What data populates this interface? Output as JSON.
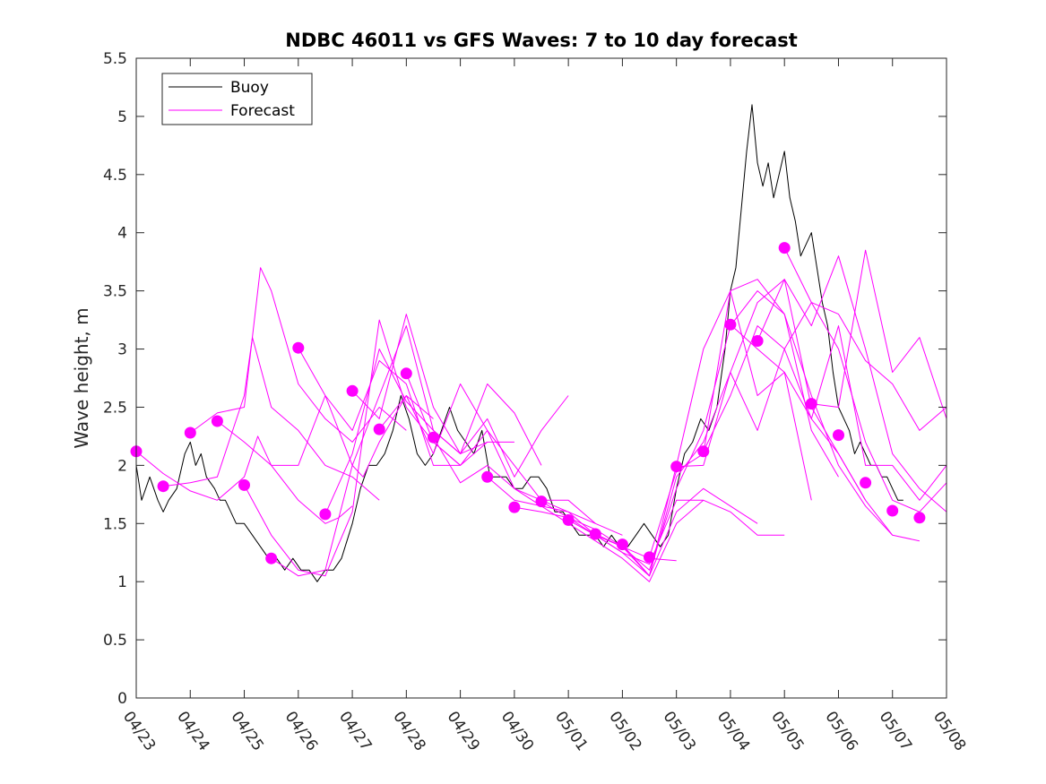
{
  "chart_data": {
    "type": "line",
    "title": "NDBC 46011 vs GFS Waves: 7 to 10 day forecast",
    "xlabel": "",
    "ylabel": "Wave height, m",
    "x_start": "04/23",
    "x_tick_labels": [
      "04/23",
      "04/24",
      "04/25",
      "04/26",
      "04/27",
      "04/28",
      "04/29",
      "04/30",
      "05/01",
      "05/02",
      "05/03",
      "05/04",
      "05/05",
      "05/06",
      "05/07",
      "05/08"
    ],
    "xlim": [
      "04/23",
      "05/08"
    ],
    "ylim": [
      0,
      5.5
    ],
    "y_ticks": [
      0,
      0.5,
      1,
      1.5,
      2,
      2.5,
      3,
      3.5,
      4,
      4.5,
      5,
      5.5
    ],
    "y_tick_labels": [
      "0",
      "0.5",
      "1",
      "1.5",
      "2",
      "2.5",
      "3",
      "3.5",
      "4",
      "4.5",
      "5",
      "5.5"
    ],
    "grid": false,
    "legend": {
      "position": "top-left",
      "entries": [
        "Buoy",
        "Forecast"
      ]
    },
    "colors": {
      "buoy": "#000000",
      "forecast": "#ff00ff",
      "axis": "#262626"
    },
    "series": [
      {
        "name": "Buoy",
        "style": "line",
        "x": [
          0.0,
          0.1,
          0.25,
          0.4,
          0.5,
          0.6,
          0.75,
          0.9,
          1.0,
          1.1,
          1.2,
          1.3,
          1.45,
          1.55,
          1.65,
          1.75,
          1.85,
          2.0,
          2.15,
          2.3,
          2.45,
          2.6,
          2.75,
          2.9,
          3.05,
          3.2,
          3.35,
          3.5,
          3.65,
          3.8,
          4.0,
          4.15,
          4.3,
          4.45,
          4.6,
          4.75,
          4.9,
          5.05,
          5.2,
          5.35,
          5.5,
          5.65,
          5.8,
          5.95,
          6.1,
          6.25,
          6.4,
          6.55,
          6.7,
          6.85,
          7.0,
          7.15,
          7.3,
          7.45,
          7.6,
          7.75,
          7.9,
          8.05,
          8.2,
          8.35,
          8.5,
          8.65,
          8.8,
          8.95,
          9.1,
          9.25,
          9.4,
          9.55,
          9.7,
          9.85,
          10.0,
          10.15,
          10.3,
          10.45,
          10.6,
          10.75,
          10.9,
          11.0,
          11.1,
          11.2,
          11.3,
          11.4,
          11.5,
          11.6,
          11.7,
          11.8,
          11.9,
          12.0,
          12.1,
          12.2,
          12.3,
          12.4,
          12.5,
          12.6,
          12.7,
          12.8,
          12.9,
          13.0,
          13.1,
          13.2,
          13.3,
          13.4,
          13.5,
          13.6,
          13.7,
          13.8,
          13.9,
          14.0,
          14.1,
          14.2
        ],
        "y": [
          2.0,
          1.7,
          1.9,
          1.7,
          1.6,
          1.7,
          1.8,
          2.1,
          2.2,
          2.0,
          2.1,
          1.9,
          1.8,
          1.7,
          1.7,
          1.6,
          1.5,
          1.5,
          1.4,
          1.3,
          1.2,
          1.2,
          1.1,
          1.2,
          1.1,
          1.1,
          1.0,
          1.1,
          1.1,
          1.2,
          1.5,
          1.8,
          2.0,
          2.0,
          2.1,
          2.3,
          2.6,
          2.4,
          2.1,
          2.0,
          2.1,
          2.3,
          2.5,
          2.3,
          2.2,
          2.1,
          2.3,
          1.9,
          1.9,
          1.9,
          1.8,
          1.8,
          1.9,
          1.9,
          1.8,
          1.6,
          1.6,
          1.5,
          1.4,
          1.4,
          1.4,
          1.3,
          1.4,
          1.3,
          1.3,
          1.4,
          1.5,
          1.4,
          1.3,
          1.4,
          1.8,
          2.1,
          2.2,
          2.4,
          2.3,
          2.5,
          3.0,
          3.5,
          3.7,
          4.2,
          4.7,
          5.1,
          4.6,
          4.4,
          4.6,
          4.3,
          4.5,
          4.7,
          4.3,
          4.1,
          3.8,
          3.9,
          4.0,
          3.7,
          3.4,
          3.2,
          2.8,
          2.5,
          2.4,
          2.3,
          2.1,
          2.2,
          2.1,
          2.0,
          2.0,
          1.9,
          1.9,
          1.8,
          1.7,
          1.7
        ]
      },
      {
        "name": "",
        "style": "line",
        "x": [
          0.0,
          0.5,
          1.0,
          1.5,
          2.0,
          2.25,
          2.5,
          3.0,
          3.5,
          3.75,
          4.0
        ],
        "y": [
          2.12,
          1.93,
          1.78,
          1.7,
          1.9,
          2.25,
          2.0,
          1.7,
          1.5,
          1.55,
          1.65
        ]
      },
      {
        "name": "",
        "style": "line",
        "x": [
          0.5,
          1.0,
          1.5,
          2.0,
          2.15,
          2.5,
          3.0,
          3.5,
          4.0,
          4.5
        ],
        "y": [
          1.82,
          1.85,
          1.9,
          2.6,
          3.1,
          2.5,
          2.3,
          2.0,
          1.9,
          1.7
        ]
      },
      {
        "name": "",
        "style": "line",
        "x": [
          1.0,
          1.5,
          2.0,
          2.3,
          2.5,
          3.0,
          3.5,
          4.0,
          4.5,
          5.0
        ],
        "y": [
          2.28,
          2.45,
          2.5,
          3.7,
          3.5,
          2.7,
          2.4,
          2.2,
          2.5,
          2.3
        ]
      },
      {
        "name": "",
        "style": "line",
        "x": [
          1.5,
          2.0,
          2.5,
          3.0,
          3.5,
          4.0,
          4.2,
          4.5,
          5.0,
          5.5
        ],
        "y": [
          2.38,
          2.2,
          2.0,
          2.0,
          2.6,
          2.0,
          1.9,
          2.2,
          2.6,
          2.4
        ]
      },
      {
        "name": "",
        "style": "line",
        "x": [
          2.0,
          2.5,
          3.0,
          3.5,
          4.0,
          4.5,
          5.0,
          5.5,
          6.0
        ],
        "y": [
          1.83,
          1.4,
          1.1,
          1.05,
          1.6,
          3.25,
          2.5,
          2.2,
          2.0
        ]
      },
      {
        "name": "",
        "style": "line",
        "x": [
          2.5,
          3.0,
          3.5,
          4.0,
          4.5,
          5.0,
          5.5,
          6.0,
          6.5
        ],
        "y": [
          1.2,
          1.05,
          1.1,
          2.0,
          2.6,
          3.2,
          2.3,
          2.1,
          2.2
        ]
      },
      {
        "name": "",
        "style": "line",
        "x": [
          3.0,
          3.5,
          4.0,
          4.5,
          5.0,
          5.5,
          6.0,
          6.5,
          7.0
        ],
        "y": [
          3.01,
          2.6,
          2.3,
          2.9,
          2.7,
          2.0,
          2.0,
          2.2,
          2.2
        ]
      },
      {
        "name": "",
        "style": "line",
        "x": [
          3.5,
          4.0,
          4.5,
          5.0,
          5.5,
          6.0,
          6.5,
          7.0,
          7.5
        ],
        "y": [
          1.58,
          2.1,
          3.0,
          2.55,
          2.3,
          2.1,
          2.7,
          2.45,
          2.0
        ]
      },
      {
        "name": "",
        "style": "line",
        "x": [
          4.0,
          4.5,
          5.0,
          5.5,
          6.0,
          6.5,
          7.0,
          7.5,
          8.0
        ],
        "y": [
          2.64,
          2.4,
          3.3,
          2.5,
          2.1,
          2.4,
          1.9,
          2.3,
          2.6
        ]
      },
      {
        "name": "",
        "style": "line",
        "x": [
          4.5,
          5.0,
          5.5,
          6.0,
          6.5,
          7.0,
          7.5,
          8.0,
          8.5
        ],
        "y": [
          2.31,
          2.6,
          2.1,
          2.7,
          2.3,
          1.8,
          1.7,
          1.7,
          1.5
        ]
      },
      {
        "name": "",
        "style": "line",
        "x": [
          5.0,
          5.5,
          6.0,
          6.5,
          7.0,
          7.5,
          8.0,
          8.5,
          9.0
        ],
        "y": [
          2.79,
          2.2,
          2.0,
          2.3,
          2.0,
          1.7,
          1.6,
          1.5,
          1.4
        ]
      },
      {
        "name": "",
        "style": "line",
        "x": [
          5.5,
          6.0,
          6.5,
          7.0,
          7.5,
          8.0,
          8.5,
          9.0,
          9.5,
          10.0
        ],
        "y": [
          2.24,
          1.85,
          2.0,
          1.8,
          1.65,
          1.6,
          1.4,
          1.3,
          1.2,
          1.18
        ]
      },
      {
        "name": "",
        "style": "line",
        "x": [
          6.5,
          7.0,
          7.5,
          8.0,
          8.5,
          9.0,
          9.5,
          10.0,
          10.5
        ],
        "y": [
          1.9,
          1.7,
          1.65,
          1.5,
          1.35,
          1.2,
          1.0,
          1.5,
          1.7
        ]
      },
      {
        "name": "",
        "style": "line",
        "x": [
          7.0,
          7.5,
          8.0,
          8.5,
          9.0,
          9.5,
          10.0,
          10.5,
          11.0,
          11.5
        ],
        "y": [
          1.64,
          1.6,
          1.55,
          1.45,
          1.3,
          1.05,
          1.6,
          1.8,
          1.65,
          1.5
        ]
      },
      {
        "name": "",
        "style": "line",
        "x": [
          7.5,
          8.0,
          8.5,
          9.0,
          9.5,
          10.0,
          10.5,
          11.0,
          11.5,
          12.0
        ],
        "y": [
          1.69,
          1.55,
          1.4,
          1.25,
          1.15,
          1.7,
          1.7,
          1.6,
          1.4,
          1.4
        ]
      },
      {
        "name": "",
        "style": "line",
        "x": [
          8.0,
          8.5,
          9.0,
          9.5,
          10.0,
          10.5,
          11.0,
          11.5,
          12.0,
          12.5
        ],
        "y": [
          1.53,
          1.4,
          1.25,
          1.05,
          2.0,
          3.0,
          3.5,
          2.6,
          2.8,
          1.7
        ]
      },
      {
        "name": "",
        "style": "line",
        "x": [
          8.5,
          9.0,
          9.5,
          10.0,
          10.5,
          11.0,
          11.5,
          12.0,
          12.5,
          13.0
        ],
        "y": [
          1.41,
          1.3,
          1.1,
          1.8,
          2.3,
          3.2,
          3.5,
          3.3,
          2.3,
          1.9
        ]
      },
      {
        "name": "",
        "style": "line",
        "x": [
          9.0,
          9.5,
          10.0,
          10.5,
          11.0,
          11.5,
          12.0,
          12.5,
          13.0,
          13.5
        ],
        "y": [
          1.32,
          1.05,
          1.9,
          2.2,
          2.8,
          3.4,
          3.6,
          2.5,
          2.1,
          1.7
        ]
      },
      {
        "name": "",
        "style": "line",
        "x": [
          9.5,
          10.0,
          10.5,
          11.0,
          11.5,
          12.0,
          12.5,
          13.0,
          13.5,
          14.0
        ],
        "y": [
          1.21,
          1.95,
          2.1,
          3.5,
          3.6,
          3.3,
          2.6,
          2.0,
          1.65,
          1.4
        ]
      },
      {
        "name": "",
        "style": "line",
        "x": [
          10.0,
          10.5,
          11.0,
          11.5,
          12.0,
          12.5,
          13.0,
          13.5,
          14.0,
          14.5
        ],
        "y": [
          1.99,
          2.0,
          2.8,
          2.3,
          3.0,
          2.4,
          2.1,
          1.7,
          1.4,
          1.35
        ]
      },
      {
        "name": "",
        "style": "line",
        "x": [
          10.5,
          11.0,
          11.5,
          12.0,
          12.5,
          13.0,
          13.5,
          14.0,
          14.5,
          15.0
        ],
        "y": [
          2.12,
          2.6,
          3.2,
          3.0,
          3.4,
          3.0,
          2.2,
          1.7,
          1.6,
          1.85
        ]
      },
      {
        "name": "",
        "style": "line",
        "x": [
          11.0,
          11.5,
          12.0,
          12.5,
          13.0,
          13.5,
          14.0,
          14.5,
          15.0
        ],
        "y": [
          3.21,
          3.0,
          2.8,
          2.4,
          3.2,
          2.0,
          2.0,
          1.7,
          2.0
        ]
      },
      {
        "name": "",
        "style": "line",
        "x": [
          11.5,
          12.0,
          12.5,
          13.0,
          13.5,
          14.0,
          14.5,
          15.0
        ],
        "y": [
          3.07,
          3.6,
          3.2,
          3.8,
          3.0,
          2.1,
          1.8,
          1.6
        ]
      },
      {
        "name": "",
        "style": "line",
        "x": [
          12.0,
          12.5,
          13.0,
          13.5,
          14.0,
          14.5,
          15.0
        ],
        "y": [
          3.87,
          3.4,
          3.3,
          2.9,
          2.7,
          2.3,
          2.5
        ]
      },
      {
        "name": "",
        "style": "line",
        "x": [
          12.5,
          13.0,
          13.5,
          14.0,
          14.5,
          15.0
        ],
        "y": [
          2.53,
          2.5,
          3.85,
          2.8,
          3.1,
          2.4
        ]
      },
      {
        "name": "Forecast",
        "style": "markers",
        "x": [
          0.0,
          0.5,
          1.0,
          1.5,
          2.0,
          2.5,
          3.0,
          3.5,
          4.0,
          4.5,
          5.0,
          5.5,
          6.0,
          6.5,
          7.0,
          7.5,
          8.0,
          8.5,
          9.0,
          9.5,
          10.0,
          10.5,
          11.0,
          11.5,
          12.0,
          12.5,
          13.0,
          13.5,
          14.0,
          14.5
        ],
        "y": [
          2.12,
          1.82,
          2.28,
          2.38,
          1.83,
          1.2,
          3.01,
          1.58,
          2.64,
          2.31,
          2.79,
          2.24,
          null,
          1.9,
          1.64,
          1.69,
          1.53,
          1.41,
          1.32,
          1.21,
          1.99,
          2.12,
          3.21,
          3.07,
          3.87,
          2.53,
          2.26,
          1.85,
          1.61,
          1.55
        ]
      }
    ]
  }
}
